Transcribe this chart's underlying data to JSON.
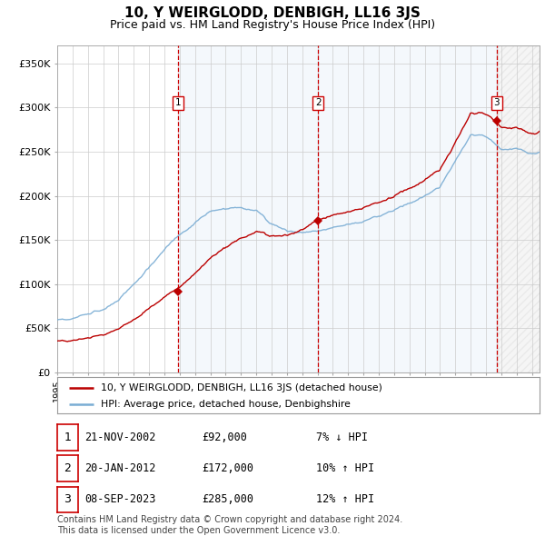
{
  "title": "10, Y WEIRGLODD, DENBIGH, LL16 3JS",
  "subtitle": "Price paid vs. HM Land Registry's House Price Index (HPI)",
  "ylabel_ticks": [
    "£0",
    "£50K",
    "£100K",
    "£150K",
    "£200K",
    "£250K",
    "£300K",
    "£350K"
  ],
  "ytick_values": [
    0,
    50000,
    100000,
    150000,
    200000,
    250000,
    300000,
    350000
  ],
  "ylim": [
    0,
    370000
  ],
  "xlim_start": 1995.0,
  "xlim_end": 2026.5,
  "sales": [
    {
      "year": 2002.9,
      "price": 92000,
      "label": "1"
    },
    {
      "year": 2012.05,
      "price": 172000,
      "label": "2"
    },
    {
      "year": 2023.69,
      "price": 285000,
      "label": "3"
    }
  ],
  "vlines": [
    2002.9,
    2012.05,
    2023.69
  ],
  "vline_color": "#cc0000",
  "vline_style": "--",
  "hpi_color": "#7aadd4",
  "price_color": "#bb0000",
  "grid_color": "#cccccc",
  "shade_color": "#ddeeff",
  "background_color": "#ffffff",
  "legend_entries": [
    "10, Y WEIRGLODD, DENBIGH, LL16 3JS (detached house)",
    "HPI: Average price, detached house, Denbighshire"
  ],
  "table_rows": [
    {
      "num": "1",
      "date": "21-NOV-2002",
      "price": "£92,000",
      "hpi": "7% ↓ HPI"
    },
    {
      "num": "2",
      "date": "20-JAN-2012",
      "price": "£172,000",
      "hpi": "10% ↑ HPI"
    },
    {
      "num": "3",
      "date": "08-SEP-2023",
      "price": "£285,000",
      "hpi": "12% ↑ HPI"
    }
  ],
  "footer": "Contains HM Land Registry data © Crown copyright and database right 2024.\nThis data is licensed under the Open Government Licence v3.0.",
  "title_fontsize": 11,
  "subtitle_fontsize": 9,
  "tick_fontsize": 8,
  "footer_fontsize": 7
}
